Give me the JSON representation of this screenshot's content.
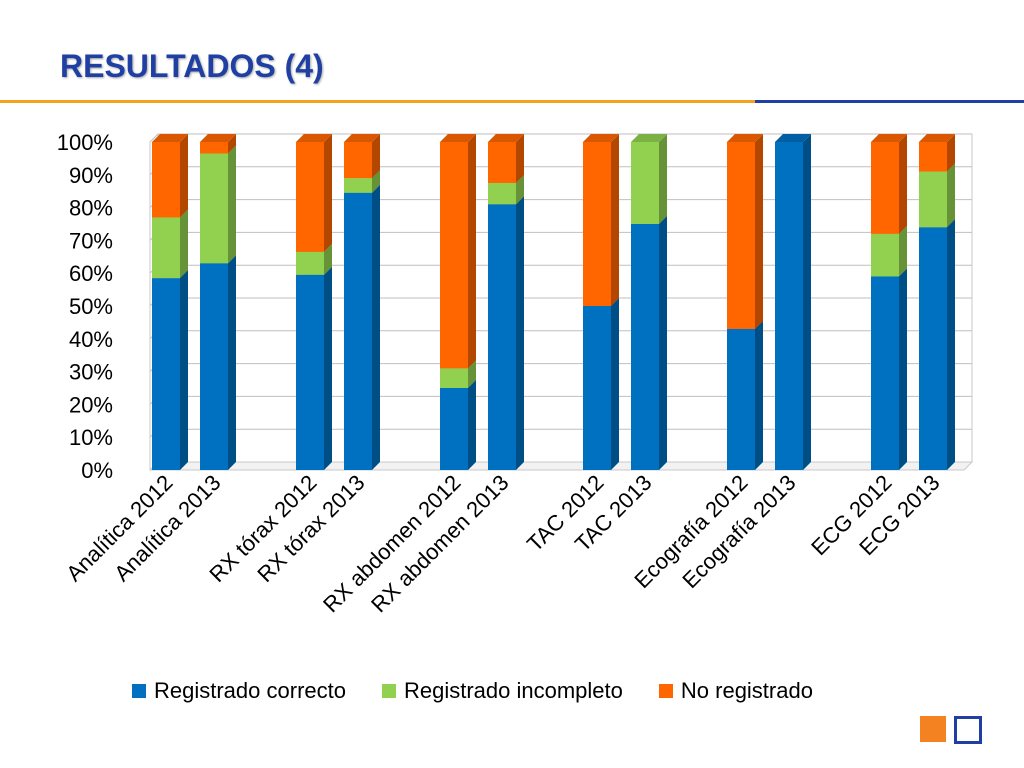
{
  "slide": {
    "title": "RESULTADOS (4)"
  },
  "colors": {
    "title": "#1f3fa3",
    "rule_orange": "#f3a21c",
    "rule_blue": "#1f3fa3",
    "registrado_correcto": "#0070c0",
    "registrado_incompleto": "#92d050",
    "no_registrado": "#ff6600"
  },
  "chart_data": {
    "type": "bar",
    "stacked": true,
    "percent_stacked": true,
    "three_d": true,
    "categories": [
      "Analítica 2012",
      "Analítica 2013",
      "RX tórax 2012",
      "RX tórax 2013",
      "RX abdomen 2012",
      "RX abdomen 2013",
      "TAC 2012",
      "TAC 2013",
      "Ecografía 2012",
      "Ecografía 2013",
      "ECG 2012",
      "ECG 2013"
    ],
    "series": [
      {
        "name": "Registrado correcto",
        "color": "#0070c0",
        "values": [
          58.5,
          63,
          59.5,
          84.5,
          25,
          81,
          50,
          75,
          43,
          100,
          59,
          74
        ]
      },
      {
        "name": "Registrado incompleto",
        "color": "#92d050",
        "values": [
          18.5,
          33.5,
          7,
          4.5,
          6,
          6.5,
          0,
          25,
          0,
          0,
          13,
          17
        ]
      },
      {
        "name": "No registrado",
        "color": "#ff6600",
        "values": [
          23,
          3.5,
          33.5,
          11,
          69,
          12.5,
          50,
          0,
          57,
          0,
          28,
          9
        ]
      }
    ],
    "y_tick_labels": [
      "0%",
      "10%",
      "20%",
      "30%",
      "40%",
      "50%",
      "60%",
      "70%",
      "80%",
      "90%",
      "100%"
    ],
    "ylim": [
      0,
      100
    ],
    "grid": true,
    "legend_position": "bottom"
  }
}
